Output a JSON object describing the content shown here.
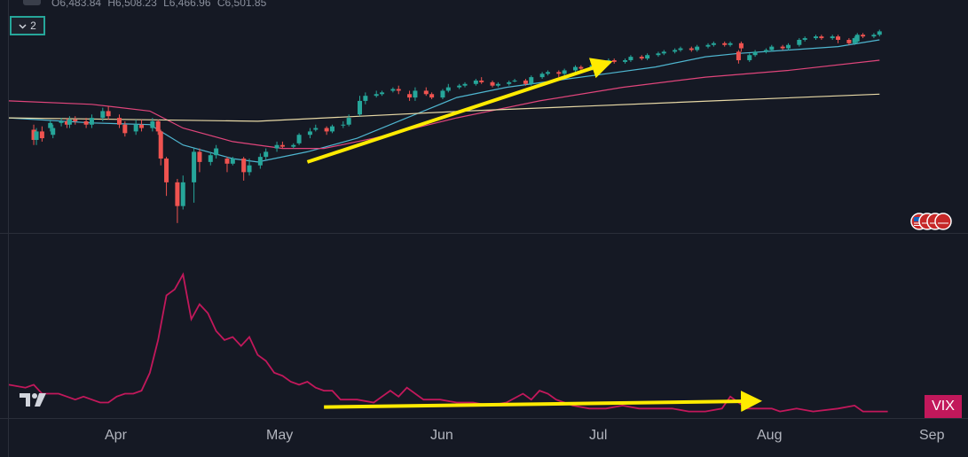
{
  "header": {
    "ohlc_open": "O6,483.84",
    "ohlc_high": "H6,508.23",
    "ohlc_low": "L6,466.96",
    "ohlc_close": "C6,501.85",
    "indicator_count": "2"
  },
  "x_axis": {
    "months": [
      "Apr",
      "May",
      "Jun",
      "Jul",
      "Aug",
      "Sep"
    ]
  },
  "vix_label": "VIX",
  "colors": {
    "background": "#151924",
    "up": "#26a69a",
    "down": "#ef5350",
    "ma_fast": "#4fb6d0",
    "ma_mid": "#e0457b",
    "ma_slow": "#e8d9a6",
    "vix_line": "#c2185b",
    "arrow": "#ffeb00"
  },
  "chart_data": [
    {
      "type": "candlestick",
      "title": "",
      "x_unit": "trading day",
      "x_range": [
        0,
        110
      ],
      "candles": [
        [
          3,
          94.5,
          91.5,
          96.0,
          90.0
        ],
        [
          3,
          91.5,
          94.0,
          95.0,
          90.0
        ],
        [
          4,
          94.0,
          92.0,
          95.5,
          91.0
        ],
        [
          5,
          93.0,
          95.0,
          96.0,
          92.0
        ],
        [
          5,
          95.0,
          96.5,
          97.5,
          94.0
        ],
        [
          6,
          96.5,
          97.0,
          98.0,
          95.5
        ],
        [
          7,
          97.0,
          96.0,
          98.0,
          95.0
        ],
        [
          7,
          96.0,
          97.5,
          98.5,
          95.0
        ],
        [
          8,
          97.5,
          97.0,
          98.5,
          96.0
        ],
        [
          9,
          97.0,
          96.0,
          98.0,
          95.0
        ],
        [
          10,
          96.0,
          98.0,
          99.0,
          95.0
        ],
        [
          11,
          98.0,
          100.0,
          101.0,
          97.0
        ],
        [
          12,
          100.0,
          98.5,
          101.5,
          97.5
        ],
        [
          13,
          98.0,
          96.0,
          99.0,
          95.0
        ],
        [
          14,
          96.0,
          93.5,
          97.0,
          92.5
        ],
        [
          15,
          94.0,
          96.0,
          97.5,
          93.0
        ],
        [
          16,
          96.0,
          95.0,
          97.5,
          94.0
        ],
        [
          17,
          95.0,
          97.0,
          98.0,
          94.0
        ],
        [
          18,
          97.0,
          94.0,
          97.5,
          93.0
        ],
        [
          18,
          94.0,
          86.0,
          94.5,
          84.0
        ],
        [
          19,
          86.0,
          79.0,
          86.5,
          75.0
        ],
        [
          20,
          79.0,
          72.0,
          80.0,
          67.0
        ],
        [
          21,
          72.0,
          79.0,
          81.0,
          71.0
        ],
        [
          22,
          79.0,
          88.0,
          89.0,
          73.0
        ],
        [
          23,
          88.0,
          85.0,
          89.0,
          82.0
        ],
        [
          24,
          85.0,
          87.0,
          88.0,
          84.0
        ],
        [
          25,
          87.0,
          89.0,
          90.0,
          86.0
        ],
        [
          26,
          86.0,
          84.5,
          86.5,
          82.0
        ],
        [
          27,
          84.5,
          86.0,
          86.5,
          84.0
        ],
        [
          28,
          86.0,
          82.0,
          86.5,
          79.5
        ],
        [
          29,
          82.0,
          84.0,
          86.0,
          81.0
        ],
        [
          30,
          84.0,
          86.5,
          87.5,
          83.0
        ],
        [
          31,
          86.5,
          88.0,
          89.0,
          85.5
        ],
        [
          32,
          89.0,
          90.0,
          91.0,
          88.0
        ],
        [
          33,
          90.0,
          89.5,
          91.0,
          89.0
        ],
        [
          34,
          89.5,
          90.0,
          90.5,
          89.0
        ],
        [
          35,
          90.5,
          93.0,
          93.5,
          90.0
        ],
        [
          36,
          93.0,
          94.0,
          95.0,
          92.0
        ],
        [
          37,
          94.5,
          95.0,
          96.0,
          94.0
        ],
        [
          38,
          95.0,
          94.0,
          95.5,
          93.0
        ],
        [
          39,
          94.0,
          95.5,
          96.0,
          93.5
        ],
        [
          40,
          96.0,
          96.0,
          97.0,
          95.0
        ],
        [
          41,
          96.0,
          98.0,
          99.0,
          95.5
        ],
        [
          42,
          99.0,
          103.0,
          104.5,
          98.5
        ],
        [
          43,
          103.0,
          104.5,
          105.5,
          102.0
        ],
        [
          44,
          104.5,
          105.0,
          106.0,
          104.0
        ],
        [
          45,
          105.0,
          105.5,
          106.0,
          104.5
        ],
        [
          46,
          106.0,
          106.5,
          107.0,
          105.5
        ],
        [
          47,
          106.5,
          106.0,
          107.5,
          105.0
        ],
        [
          48,
          105.0,
          104.0,
          106.0,
          103.0
        ],
        [
          49,
          104.0,
          106.0,
          107.0,
          103.0
        ],
        [
          50,
          106.0,
          105.0,
          107.0,
          104.5
        ],
        [
          51,
          105.0,
          104.0,
          105.5,
          103.5
        ],
        [
          52,
          104.0,
          106.0,
          106.5,
          103.5
        ],
        [
          53,
          106.0,
          107.0,
          108.0,
          105.5
        ],
        [
          54,
          107.0,
          107.5,
          108.0,
          106.5
        ],
        [
          55,
          107.5,
          108.0,
          108.5,
          107.0
        ],
        [
          56,
          108.0,
          109.0,
          109.5,
          107.5
        ],
        [
          57,
          109.0,
          108.5,
          110.0,
          108.0
        ],
        [
          58,
          108.5,
          107.5,
          109.0,
          107.0
        ],
        [
          59,
          107.5,
          108.0,
          108.5,
          107.0
        ],
        [
          60,
          108.0,
          108.5,
          109.0,
          107.5
        ],
        [
          61,
          109.0,
          109.0,
          109.5,
          108.5
        ],
        [
          62,
          109.0,
          108.0,
          109.5,
          107.5
        ],
        [
          63,
          108.0,
          110.0,
          110.5,
          107.5
        ],
        [
          64,
          110.0,
          111.0,
          111.5,
          109.5
        ],
        [
          65,
          111.0,
          111.5,
          112.0,
          110.5
        ],
        [
          66,
          111.5,
          111.0,
          112.0,
          110.0
        ],
        [
          67,
          111.0,
          112.0,
          112.5,
          110.5
        ],
        [
          68,
          112.0,
          113.0,
          113.5,
          111.5
        ],
        [
          69,
          113.0,
          112.5,
          113.5,
          112.0
        ],
        [
          70,
          112.5,
          113.5,
          114.0,
          112.0
        ],
        [
          71,
          113.5,
          114.0,
          114.5,
          113.0
        ],
        [
          72,
          114.0,
          115.0,
          115.5,
          113.5
        ],
        [
          73,
          115.0,
          114.5,
          115.5,
          114.0
        ],
        [
          74,
          114.5,
          115.0,
          115.5,
          114.0
        ],
        [
          75,
          115.0,
          116.0,
          116.5,
          114.5
        ],
        [
          76,
          116.0,
          115.5,
          116.5,
          115.0
        ],
        [
          77,
          115.5,
          116.5,
          117.0,
          115.0
        ],
        [
          78,
          116.5,
          117.0,
          117.5,
          116.0
        ],
        [
          79,
          117.0,
          117.5,
          118.0,
          116.5
        ],
        [
          80,
          117.5,
          118.0,
          118.5,
          117.0
        ],
        [
          81,
          118.0,
          118.5,
          119.0,
          117.5
        ],
        [
          82,
          118.5,
          118.0,
          119.0,
          117.5
        ],
        [
          83,
          118.0,
          119.0,
          119.5,
          117.5
        ],
        [
          84,
          119.0,
          119.5,
          120.0,
          118.5
        ],
        [
          85,
          119.5,
          120.0,
          120.5,
          119.0
        ],
        [
          86,
          120.0,
          119.5,
          120.5,
          119.0
        ],
        [
          87,
          119.5,
          120.0,
          120.5,
          119.0
        ],
        [
          88,
          120.0,
          118.5,
          120.5,
          117.5
        ],
        [
          88,
          117.5,
          115.0,
          118.0,
          114.0
        ],
        [
          89,
          115.0,
          116.5,
          117.0,
          114.5
        ],
        [
          90,
          116.5,
          117.5,
          118.0,
          116.0
        ],
        [
          91,
          117.5,
          118.0,
          118.5,
          117.0
        ],
        [
          92,
          118.0,
          119.0,
          119.5,
          117.5
        ],
        [
          93,
          119.0,
          118.5,
          119.5,
          118.0
        ],
        [
          94,
          118.5,
          119.5,
          120.0,
          118.0
        ],
        [
          95,
          119.5,
          121.0,
          121.5,
          119.0
        ],
        [
          96,
          121.0,
          121.5,
          122.0,
          120.5
        ],
        [
          97,
          121.5,
          122.0,
          122.5,
          121.0
        ],
        [
          98,
          122.0,
          121.5,
          122.5,
          121.0
        ],
        [
          99,
          121.5,
          122.0,
          122.5,
          121.0
        ],
        [
          100,
          122.0,
          121.0,
          122.5,
          120.0
        ],
        [
          101,
          121.0,
          120.0,
          121.5,
          119.5
        ],
        [
          102,
          120.0,
          121.5,
          122.0,
          119.5
        ],
        [
          102,
          120.5,
          122.5,
          123.0,
          120.0
        ],
        [
          103,
          122.5,
          122.0,
          123.0,
          121.5
        ],
        [
          104,
          122.0,
          122.5,
          123.0,
          121.5
        ],
        [
          105,
          122.5,
          123.5,
          124.0,
          122.0
        ]
      ],
      "moving_averages": [
        {
          "color": "#4fb6d0",
          "values": [
            [
              0,
              98
            ],
            [
              10,
              96.5
            ],
            [
              17,
              96
            ],
            [
              21,
              90
            ],
            [
              27,
              86
            ],
            [
              30,
              85
            ],
            [
              36,
              88
            ],
            [
              42,
              92
            ],
            [
              48,
              98
            ],
            [
              54,
              104
            ],
            [
              60,
              107
            ],
            [
              66,
              109
            ],
            [
              72,
              111
            ],
            [
              78,
              113
            ],
            [
              84,
              116
            ],
            [
              88,
              117
            ],
            [
              94,
              118
            ],
            [
              100,
              119
            ],
            [
              105,
              121
            ]
          ]
        },
        {
          "color": "#e0457b",
          "values": [
            [
              0,
              103
            ],
            [
              10,
              102
            ],
            [
              17,
              100
            ],
            [
              21,
              95
            ],
            [
              27,
              91
            ],
            [
              33,
              89
            ],
            [
              38,
              89
            ],
            [
              44,
              92
            ],
            [
              54,
              98
            ],
            [
              64,
              103
            ],
            [
              74,
              107
            ],
            [
              84,
              110
            ],
            [
              94,
              112
            ],
            [
              105,
              115
            ]
          ]
        },
        {
          "color": "#e8d9a6",
          "values": [
            [
              0,
              98
            ],
            [
              30,
              97
            ],
            [
              55,
              100
            ],
            [
              70,
              101.5
            ],
            [
              85,
              103
            ],
            [
              105,
              105
            ]
          ]
        }
      ],
      "annotations": [
        {
          "type": "arrow",
          "color": "#ffeb00",
          "from": [
            36,
            85
          ],
          "to": [
            72,
            114
          ]
        }
      ]
    },
    {
      "type": "line",
      "name": "VIX",
      "title": "",
      "x_range": [
        0,
        110
      ],
      "ylim": [
        10,
        65
      ],
      "values": [
        [
          0,
          20
        ],
        [
          2,
          19
        ],
        [
          3,
          20
        ],
        [
          4,
          17
        ],
        [
          6,
          17
        ],
        [
          7,
          16
        ],
        [
          8,
          15
        ],
        [
          9,
          16
        ],
        [
          10,
          15
        ],
        [
          11,
          14
        ],
        [
          12,
          14
        ],
        [
          13,
          16
        ],
        [
          14,
          17
        ],
        [
          15,
          17
        ],
        [
          16,
          18
        ],
        [
          17,
          24
        ],
        [
          18,
          35
        ],
        [
          19,
          50
        ],
        [
          20,
          52
        ],
        [
          21,
          57
        ],
        [
          22,
          42
        ],
        [
          23,
          47
        ],
        [
          24,
          44
        ],
        [
          25,
          38
        ],
        [
          26,
          35
        ],
        [
          27,
          36
        ],
        [
          28,
          33
        ],
        [
          29,
          36
        ],
        [
          30,
          30
        ],
        [
          31,
          28
        ],
        [
          32,
          24
        ],
        [
          33,
          23
        ],
        [
          34,
          21
        ],
        [
          35,
          20
        ],
        [
          36,
          21
        ],
        [
          37,
          19
        ],
        [
          38,
          18
        ],
        [
          39,
          18
        ],
        [
          40,
          15
        ],
        [
          42,
          15
        ],
        [
          44,
          14
        ],
        [
          45,
          16
        ],
        [
          46,
          18
        ],
        [
          47,
          16
        ],
        [
          48,
          19
        ],
        [
          50,
          15
        ],
        [
          52,
          15
        ],
        [
          54,
          14
        ],
        [
          56,
          14
        ],
        [
          58,
          13
        ],
        [
          60,
          14
        ],
        [
          62,
          17
        ],
        [
          63,
          15
        ],
        [
          64,
          18
        ],
        [
          65,
          17
        ],
        [
          66,
          15
        ],
        [
          68,
          13
        ],
        [
          70,
          12
        ],
        [
          72,
          12
        ],
        [
          74,
          13
        ],
        [
          76,
          12
        ],
        [
          78,
          12
        ],
        [
          80,
          12
        ],
        [
          82,
          11
        ],
        [
          84,
          11
        ],
        [
          86,
          12
        ],
        [
          87,
          16
        ],
        [
          88,
          14
        ],
        [
          89,
          12
        ],
        [
          90,
          12
        ],
        [
          92,
          12
        ],
        [
          93,
          11
        ],
        [
          95,
          12
        ],
        [
          97,
          11
        ],
        [
          100,
          12
        ],
        [
          102,
          13
        ],
        [
          103,
          11
        ],
        [
          104,
          11
        ],
        [
          106,
          11
        ]
      ],
      "annotations": [
        {
          "type": "arrow",
          "color": "#ffeb00",
          "from": [
            38,
            12.5
          ],
          "to": [
            90,
            14.5
          ]
        }
      ]
    }
  ]
}
